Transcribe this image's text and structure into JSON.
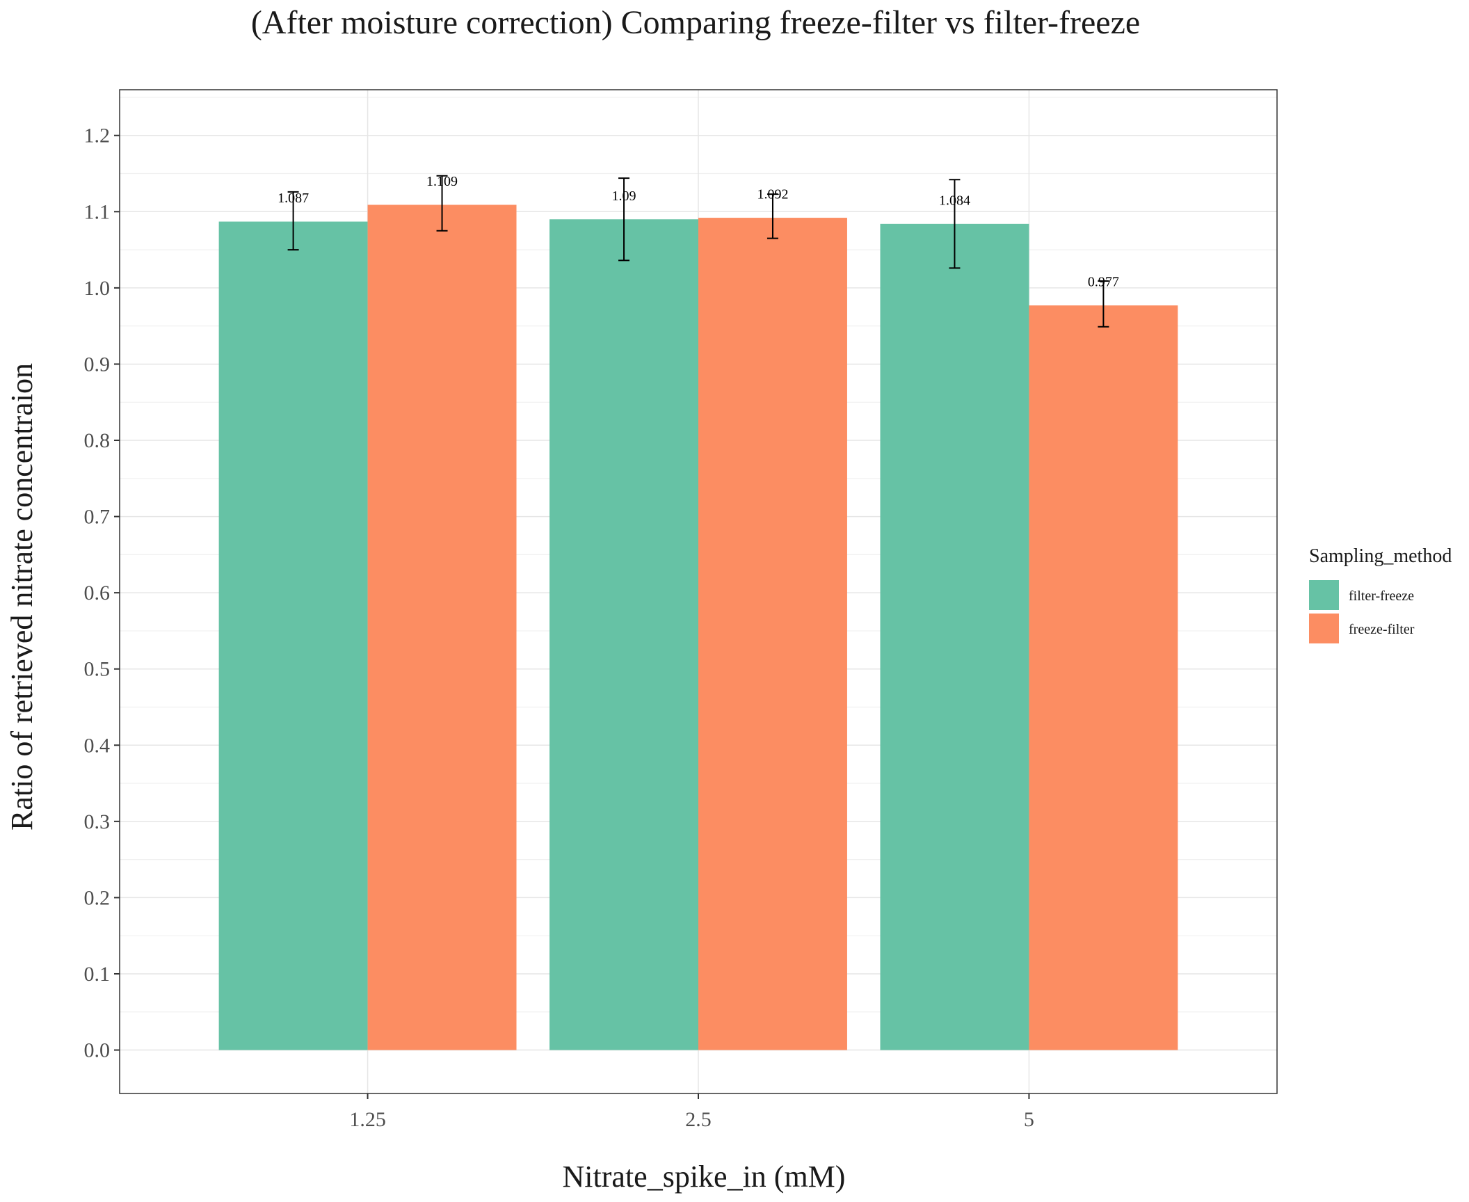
{
  "chart_data": {
    "type": "bar",
    "title": "(After moisture correction) Comparing freeze-filter vs filter-freeze",
    "xlabel": "Nitrate_spike_in (mM)",
    "ylabel": "Ratio of retrieved nitrate concentraion",
    "categories": [
      "1.25",
      "2.5",
      "5"
    ],
    "ylim": [
      -0.057,
      1.26
    ],
    "yticks": [
      "0.0",
      "0.1",
      "0.2",
      "0.3",
      "0.4",
      "0.5",
      "0.6",
      "0.7",
      "0.8",
      "0.9",
      "1.0",
      "1.1",
      "1.2"
    ],
    "grid": true,
    "legend": {
      "title": "Sampling_method",
      "position": "right"
    },
    "series": [
      {
        "name": "filter-freeze",
        "color": "#66c2a5",
        "values": [
          1.087,
          1.09,
          1.084
        ],
        "labels": [
          "1.087",
          "1.09",
          "1.084"
        ],
        "err_low": [
          1.05,
          1.036,
          1.026
        ],
        "err_high": [
          1.126,
          1.144,
          1.142
        ]
      },
      {
        "name": "freeze-filter",
        "color": "#fc8d62",
        "values": [
          1.109,
          1.092,
          0.977
        ],
        "labels": [
          "1.109",
          "1.092",
          "0.977"
        ],
        "err_low": [
          1.075,
          1.065,
          0.949
        ],
        "err_high": [
          1.147,
          1.123,
          1.009
        ]
      }
    ]
  }
}
